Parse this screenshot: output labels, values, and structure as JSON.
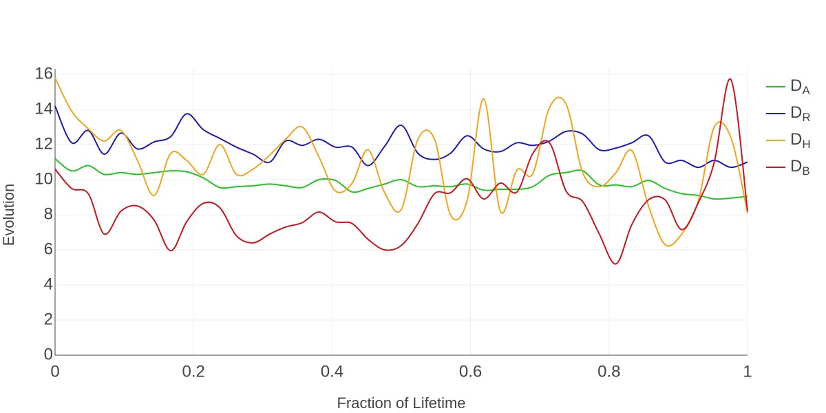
{
  "chart_data": {
    "type": "line",
    "xlabel": "Fraction of Lifetime",
    "ylabel": "Evolution",
    "x": [
      0,
      0.024,
      0.048,
      0.071,
      0.095,
      0.119,
      0.143,
      0.167,
      0.19,
      0.214,
      0.238,
      0.262,
      0.286,
      0.31,
      0.333,
      0.357,
      0.381,
      0.405,
      0.429,
      0.452,
      0.476,
      0.5,
      0.524,
      0.548,
      0.571,
      0.595,
      0.619,
      0.643,
      0.667,
      0.69,
      0.714,
      0.738,
      0.762,
      0.786,
      0.81,
      0.833,
      0.857,
      0.881,
      0.905,
      0.929,
      0.952,
      0.976,
      1
    ],
    "series": [
      {
        "name": "D",
        "subscript": "A",
        "color": "#22c422",
        "values": [
          11.2,
          10.5,
          10.8,
          10.3,
          10.4,
          10.3,
          10.4,
          10.5,
          10.45,
          10.1,
          9.55,
          9.6,
          9.65,
          9.75,
          9.65,
          9.55,
          10.0,
          9.95,
          9.3,
          9.5,
          9.75,
          10.0,
          9.6,
          9.65,
          9.6,
          9.75,
          9.4,
          9.45,
          9.45,
          9.6,
          10.25,
          10.4,
          10.5,
          9.7,
          9.7,
          9.6,
          9.95,
          9.5,
          9.2,
          9.1,
          8.9,
          8.95,
          9.05
        ]
      },
      {
        "name": "D",
        "subscript": "R",
        "color": "#1a1ab8",
        "values": [
          14.2,
          12.1,
          12.8,
          11.45,
          12.65,
          11.75,
          12.15,
          12.45,
          13.75,
          12.85,
          12.35,
          11.85,
          11.45,
          11.0,
          12.2,
          11.95,
          12.3,
          11.85,
          11.85,
          10.8,
          11.9,
          13.1,
          11.5,
          11.15,
          11.5,
          12.5,
          11.75,
          11.6,
          12.1,
          11.95,
          12.2,
          12.75,
          12.6,
          11.7,
          11.8,
          12.1,
          12.5,
          11.0,
          11.1,
          10.7,
          11.1,
          10.7,
          11.0
        ]
      },
      {
        "name": "D",
        "subscript": "H",
        "color": "#f5a31a",
        "values": [
          15.8,
          13.9,
          12.9,
          12.2,
          12.8,
          11.1,
          9.1,
          11.5,
          11.1,
          10.3,
          12.0,
          10.3,
          10.6,
          11.4,
          12.3,
          13.0,
          11.3,
          9.35,
          9.8,
          11.7,
          9.25,
          8.3,
          12.3,
          12.3,
          8.0,
          8.8,
          14.6,
          8.2,
          10.55,
          10.35,
          14.1,
          14.3,
          10.4,
          9.6,
          10.4,
          11.65,
          8.5,
          6.3,
          6.9,
          8.8,
          13.0,
          12.4,
          8.1
        ]
      },
      {
        "name": "D",
        "subscript": "B",
        "color": "#c8161e",
        "values": [
          10.6,
          9.5,
          9.2,
          6.9,
          8.2,
          8.5,
          7.7,
          5.95,
          7.6,
          8.65,
          8.4,
          6.8,
          6.4,
          6.9,
          7.3,
          7.55,
          8.15,
          7.6,
          7.5,
          6.6,
          6.0,
          6.25,
          7.5,
          9.2,
          9.25,
          10.05,
          8.9,
          9.8,
          9.3,
          11.5,
          12.1,
          9.35,
          8.75,
          6.9,
          5.2,
          7.45,
          8.85,
          8.85,
          7.15,
          8.7,
          11.0,
          15.7,
          8.2
        ]
      }
    ],
    "xlim": [
      0,
      1
    ],
    "ylim": [
      0,
      16
    ],
    "xticks": [
      0,
      0.2,
      0.4,
      0.6,
      0.8,
      1
    ],
    "yticks": [
      0,
      2,
      4,
      6,
      8,
      10,
      12,
      14,
      16
    ],
    "grid": true,
    "legend": "right"
  }
}
